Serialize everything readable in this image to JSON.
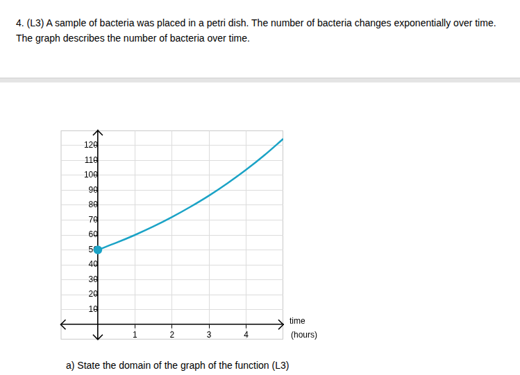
{
  "question": "4. (L3) A sample of bacteria was placed in a petri dish.  The number of bacteria changes exponentially over time.  The graph describes the number of bacteria over time.",
  "part_a": "a) State the domain of the graph of the function (L3)",
  "chart_data": {
    "type": "line",
    "x_label": "time (hours)",
    "x": [
      0,
      0.5,
      1,
      1.5,
      2,
      2.5,
      3,
      3.5,
      4,
      4.5,
      5
    ],
    "values": [
      50,
      54.8,
      60,
      65.7,
      72,
      78.9,
      86.4,
      94.7,
      103.7,
      113.6,
      124.4
    ],
    "color": "#1ba3c6",
    "xlim": [
      -1,
      5
    ],
    "ylim": [
      -10,
      130
    ],
    "xticks": [
      1,
      2,
      3,
      4
    ],
    "yticks": [
      10,
      20,
      30,
      40,
      50,
      60,
      70,
      80,
      90,
      100,
      110,
      120
    ],
    "grid": true
  }
}
